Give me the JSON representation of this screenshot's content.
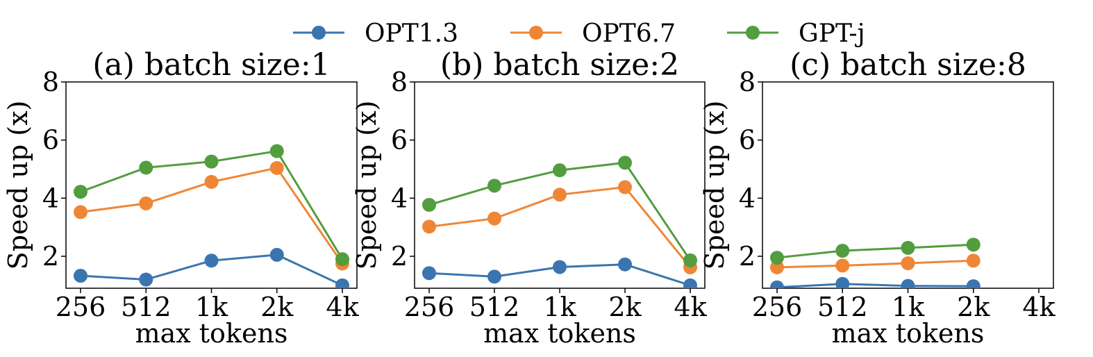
{
  "legend": [
    {
      "name": "OPT1.3",
      "color": "#3a75b0"
    },
    {
      "name": "OPT6.7",
      "color": "#ef8636"
    },
    {
      "name": "GPT-j",
      "color": "#529d3e"
    }
  ],
  "chart_data": [
    {
      "type": "line",
      "title": "(a) batch size:1",
      "xlabel": "max tokens",
      "ylabel": "Speed up (x)",
      "categories": [
        "256",
        "512",
        "1k",
        "2k",
        "4k"
      ],
      "ylim": [
        0.9,
        8
      ],
      "yticks": [
        "2",
        "4",
        "6",
        "8"
      ],
      "grid": false,
      "series": [
        {
          "name": "OPT1.3",
          "values": [
            1.33,
            1.2,
            1.85,
            2.05,
            1.0
          ]
        },
        {
          "name": "OPT6.7",
          "values": [
            3.52,
            3.82,
            4.56,
            5.04,
            1.75
          ]
        },
        {
          "name": "GPT-j",
          "values": [
            4.22,
            5.05,
            5.26,
            5.62,
            1.9
          ]
        }
      ]
    },
    {
      "type": "line",
      "title": "(b) batch size:2",
      "xlabel": "max tokens",
      "ylabel": "Speed up (x)",
      "categories": [
        "256",
        "512",
        "1k",
        "2k",
        "4k"
      ],
      "ylim": [
        0.9,
        8
      ],
      "yticks": [
        "2",
        "4",
        "6",
        "8"
      ],
      "grid": false,
      "series": [
        {
          "name": "OPT1.3",
          "values": [
            1.42,
            1.3,
            1.63,
            1.72,
            1.0
          ]
        },
        {
          "name": "OPT6.7",
          "values": [
            3.02,
            3.3,
            4.12,
            4.38,
            1.62
          ]
        },
        {
          "name": "GPT-j",
          "values": [
            3.77,
            4.43,
            4.96,
            5.22,
            1.86
          ]
        }
      ]
    },
    {
      "type": "line",
      "title": "(c) batch size:8",
      "xlabel": "max tokens",
      "ylabel": "Speed up (x)",
      "categories": [
        "256",
        "512",
        "1k",
        "2k",
        "4k"
      ],
      "ylim": [
        0.9,
        8
      ],
      "yticks": [
        "2",
        "4",
        "6",
        "8"
      ],
      "grid": false,
      "series": [
        {
          "name": "OPT1.3",
          "values": [
            0.93,
            1.05,
            0.98,
            0.97,
            null
          ]
        },
        {
          "name": "OPT6.7",
          "values": [
            1.62,
            1.68,
            1.76,
            1.85,
            null
          ]
        },
        {
          "name": "GPT-j",
          "values": [
            1.95,
            2.19,
            2.29,
            2.4,
            null
          ]
        }
      ]
    }
  ]
}
